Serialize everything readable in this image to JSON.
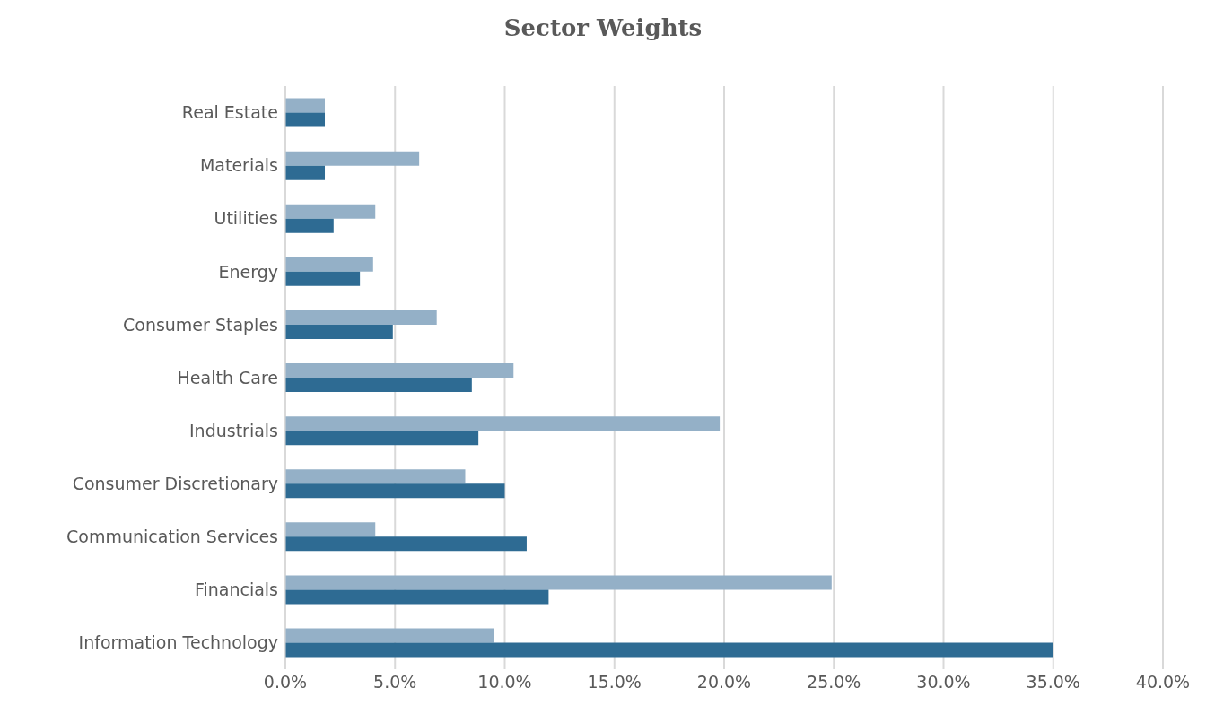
{
  "chart_data": {
    "type": "bar",
    "orientation": "horizontal",
    "title": "Sector Weights",
    "categories": [
      "Real Estate",
      "Materials",
      "Utilities",
      "Energy",
      "Consumer Staples",
      "Health Care",
      "Industrials",
      "Consumer Discretionary",
      "Communication Services",
      "Financials",
      "Information Technology"
    ],
    "series": [
      {
        "color": "#94b0c7",
        "values": [
          1.8,
          6.1,
          4.1,
          4.0,
          6.9,
          10.4,
          19.8,
          8.2,
          4.1,
          24.9,
          9.5
        ]
      },
      {
        "color": "#2e6b93",
        "values": [
          1.8,
          1.8,
          2.2,
          3.4,
          4.9,
          8.5,
          8.8,
          10.0,
          11.0,
          12.0,
          35.0
        ]
      }
    ],
    "xlim": [
      0,
      40
    ],
    "xticks": [
      {
        "value": 0,
        "label": "0.0%"
      },
      {
        "value": 5,
        "label": "5.0%"
      },
      {
        "value": 10,
        "label": "10.0%"
      },
      {
        "value": 15,
        "label": "15.0%"
      },
      {
        "value": 20,
        "label": "20.0%"
      },
      {
        "value": 25,
        "label": "25.0%"
      },
      {
        "value": 30,
        "label": "30.0%"
      },
      {
        "value": 35,
        "label": "35.0%"
      },
      {
        "value": 40,
        "label": "40.0%"
      }
    ],
    "grid": "x"
  }
}
